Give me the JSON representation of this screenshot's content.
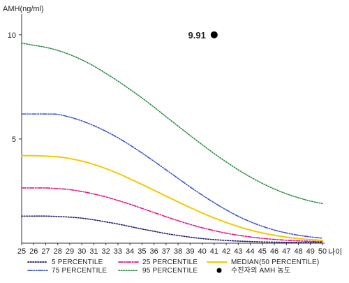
{
  "chart_data": {
    "type": "line",
    "ylabel": "AMH(ng/ml)",
    "xlabel": "나이",
    "xlim": [
      25,
      50
    ],
    "ylim": [
      0,
      11
    ],
    "x_ticks": [
      25,
      26,
      27,
      28,
      29,
      30,
      31,
      32,
      33,
      34,
      35,
      36,
      37,
      38,
      39,
      40,
      41,
      42,
      43,
      44,
      45,
      46,
      47,
      48,
      49,
      50
    ],
    "y_ticks": [
      5,
      10
    ],
    "grid": false,
    "legend_position": "bottom",
    "x": [
      25,
      26,
      27,
      28,
      29,
      30,
      31,
      32,
      33,
      34,
      35,
      36,
      37,
      38,
      39,
      40,
      41,
      42,
      43,
      44,
      45,
      46,
      47,
      48,
      49,
      50
    ],
    "series": [
      {
        "name": "5 PERCENTILE",
        "color": "#1a1a6e",
        "style": "dotted",
        "values": [
          1.3,
          1.3,
          1.3,
          1.28,
          1.25,
          1.2,
          1.12,
          1.02,
          0.92,
          0.8,
          0.68,
          0.57,
          0.46,
          0.37,
          0.29,
          0.22,
          0.17,
          0.13,
          0.1,
          0.08,
          0.06,
          0.05,
          0.04,
          0.03,
          0.03,
          0.02
        ]
      },
      {
        "name": "25 PERCENTILE",
        "color": "#e0168a",
        "style": "dashdot",
        "values": [
          2.65,
          2.65,
          2.65,
          2.62,
          2.57,
          2.48,
          2.36,
          2.22,
          2.05,
          1.87,
          1.67,
          1.47,
          1.27,
          1.08,
          0.9,
          0.74,
          0.6,
          0.48,
          0.38,
          0.3,
          0.23,
          0.18,
          0.14,
          0.11,
          0.09,
          0.07
        ]
      },
      {
        "name": "MEDIAN(50 PERCENTILE)",
        "color": "#f5c800",
        "style": "solid",
        "values": [
          4.2,
          4.2,
          4.18,
          4.14,
          4.06,
          3.94,
          3.78,
          3.58,
          3.35,
          3.09,
          2.82,
          2.54,
          2.26,
          1.98,
          1.71,
          1.45,
          1.21,
          0.99,
          0.8,
          0.63,
          0.49,
          0.38,
          0.29,
          0.22,
          0.17,
          0.13
        ]
      },
      {
        "name": "75 PERCENTILE",
        "color": "#3a55c8",
        "style": "dashdotdot",
        "values": [
          6.2,
          6.2,
          6.2,
          6.18,
          6.05,
          5.87,
          5.64,
          5.37,
          5.06,
          4.71,
          4.33,
          3.93,
          3.52,
          3.11,
          2.7,
          2.31,
          1.94,
          1.6,
          1.29,
          1.03,
          0.81,
          0.63,
          0.49,
          0.38,
          0.3,
          0.24
        ]
      },
      {
        "name": "95 PERCENTILE",
        "color": "#2e8b4a",
        "style": "dotted",
        "values": [
          9.6,
          9.5,
          9.4,
          9.25,
          9.05,
          8.8,
          8.5,
          8.15,
          7.78,
          7.38,
          6.97,
          6.53,
          6.07,
          5.62,
          5.17,
          4.73,
          4.3,
          3.9,
          3.52,
          3.18,
          2.87,
          2.6,
          2.37,
          2.18,
          2.02,
          1.9
        ]
      }
    ],
    "point": {
      "name": "수진자의 AMH 농도",
      "x": 41,
      "y": 10,
      "label": "9.91",
      "color": "#000000"
    }
  }
}
